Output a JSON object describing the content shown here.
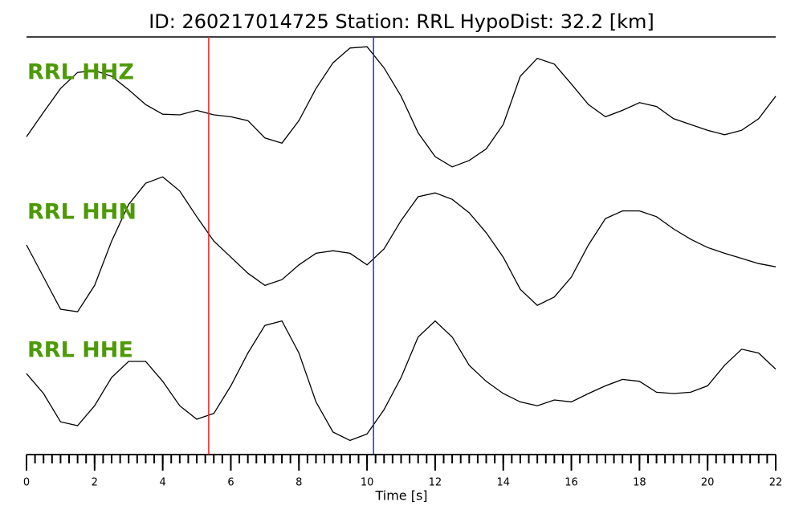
{
  "chart_data": {
    "type": "line",
    "title": "ID: 260217014725   Station: RRL   HypoDist:    32.2 [km]",
    "xlabel": "Time [s]",
    "xlim": [
      0,
      22
    ],
    "xticks": [
      0,
      2,
      4,
      6,
      8,
      10,
      12,
      14,
      16,
      18,
      20,
      22
    ],
    "xminor": 0.25,
    "label_color": "#4e9a06",
    "vlines": [
      {
        "x": 5.35,
        "color": "#e8261f"
      },
      {
        "x": 10.19,
        "color": "#1f2de8"
      }
    ],
    "x": [
      0,
      0.5,
      1,
      1.5,
      2,
      2.5,
      3,
      3.5,
      4,
      4.5,
      5,
      5.5,
      6,
      6.5,
      7,
      7.5,
      8,
      8.5,
      9,
      9.5,
      10,
      10.5,
      11,
      11.5,
      12,
      12.5,
      13,
      13.5,
      14,
      14.5,
      15,
      15.5,
      16,
      16.5,
      17,
      17.5,
      18,
      18.5,
      19,
      19.5,
      20,
      20.5,
      21,
      21.5,
      22
    ],
    "series": [
      {
        "name": "RRL HHZ",
        "color": "#000000",
        "values": [
          -0.44,
          -0.06,
          0.31,
          0.56,
          0.59,
          0.5,
          0.29,
          0.06,
          -0.09,
          -0.1,
          -0.03,
          -0.1,
          -0.13,
          -0.19,
          -0.46,
          -0.54,
          -0.19,
          0.31,
          0.71,
          0.94,
          0.96,
          0.63,
          0.19,
          -0.38,
          -0.75,
          -0.91,
          -0.81,
          -0.63,
          -0.25,
          0.5,
          0.78,
          0.69,
          0.38,
          0.06,
          -0.13,
          -0.03,
          0.09,
          0.03,
          -0.16,
          -0.25,
          -0.34,
          -0.41,
          -0.34,
          -0.16,
          0.19
        ]
      },
      {
        "name": "RRL HHN",
        "color": "#000000",
        "values": [
          0,
          -0.5,
          -1.0,
          -1.04,
          -0.63,
          0.06,
          0.63,
          0.96,
          1.06,
          0.84,
          0.44,
          0.06,
          -0.19,
          -0.44,
          -0.63,
          -0.54,
          -0.31,
          -0.13,
          -0.09,
          -0.13,
          -0.31,
          -0.06,
          0.38,
          0.75,
          0.81,
          0.71,
          0.5,
          0.19,
          -0.19,
          -0.69,
          -0.94,
          -0.81,
          -0.5,
          0,
          0.41,
          0.53,
          0.53,
          0.44,
          0.25,
          0.09,
          -0.04,
          -0.13,
          -0.21,
          -0.29,
          -0.34
        ]
      },
      {
        "name": "RRL HHE",
        "color": "#000000",
        "values": [
          0.06,
          -0.25,
          -0.69,
          -0.75,
          -0.44,
          0,
          0.25,
          0.25,
          -0.06,
          -0.44,
          -0.65,
          -0.56,
          -0.13,
          0.38,
          0.81,
          0.88,
          0.38,
          -0.38,
          -0.85,
          -0.98,
          -0.88,
          -0.5,
          0,
          0.63,
          0.88,
          0.63,
          0.19,
          -0.06,
          -0.25,
          -0.38,
          -0.44,
          -0.35,
          -0.38,
          -0.25,
          -0.13,
          -0.03,
          -0.06,
          -0.23,
          -0.25,
          -0.23,
          -0.13,
          0.19,
          0.44,
          0.38,
          0.13
        ]
      }
    ]
  }
}
